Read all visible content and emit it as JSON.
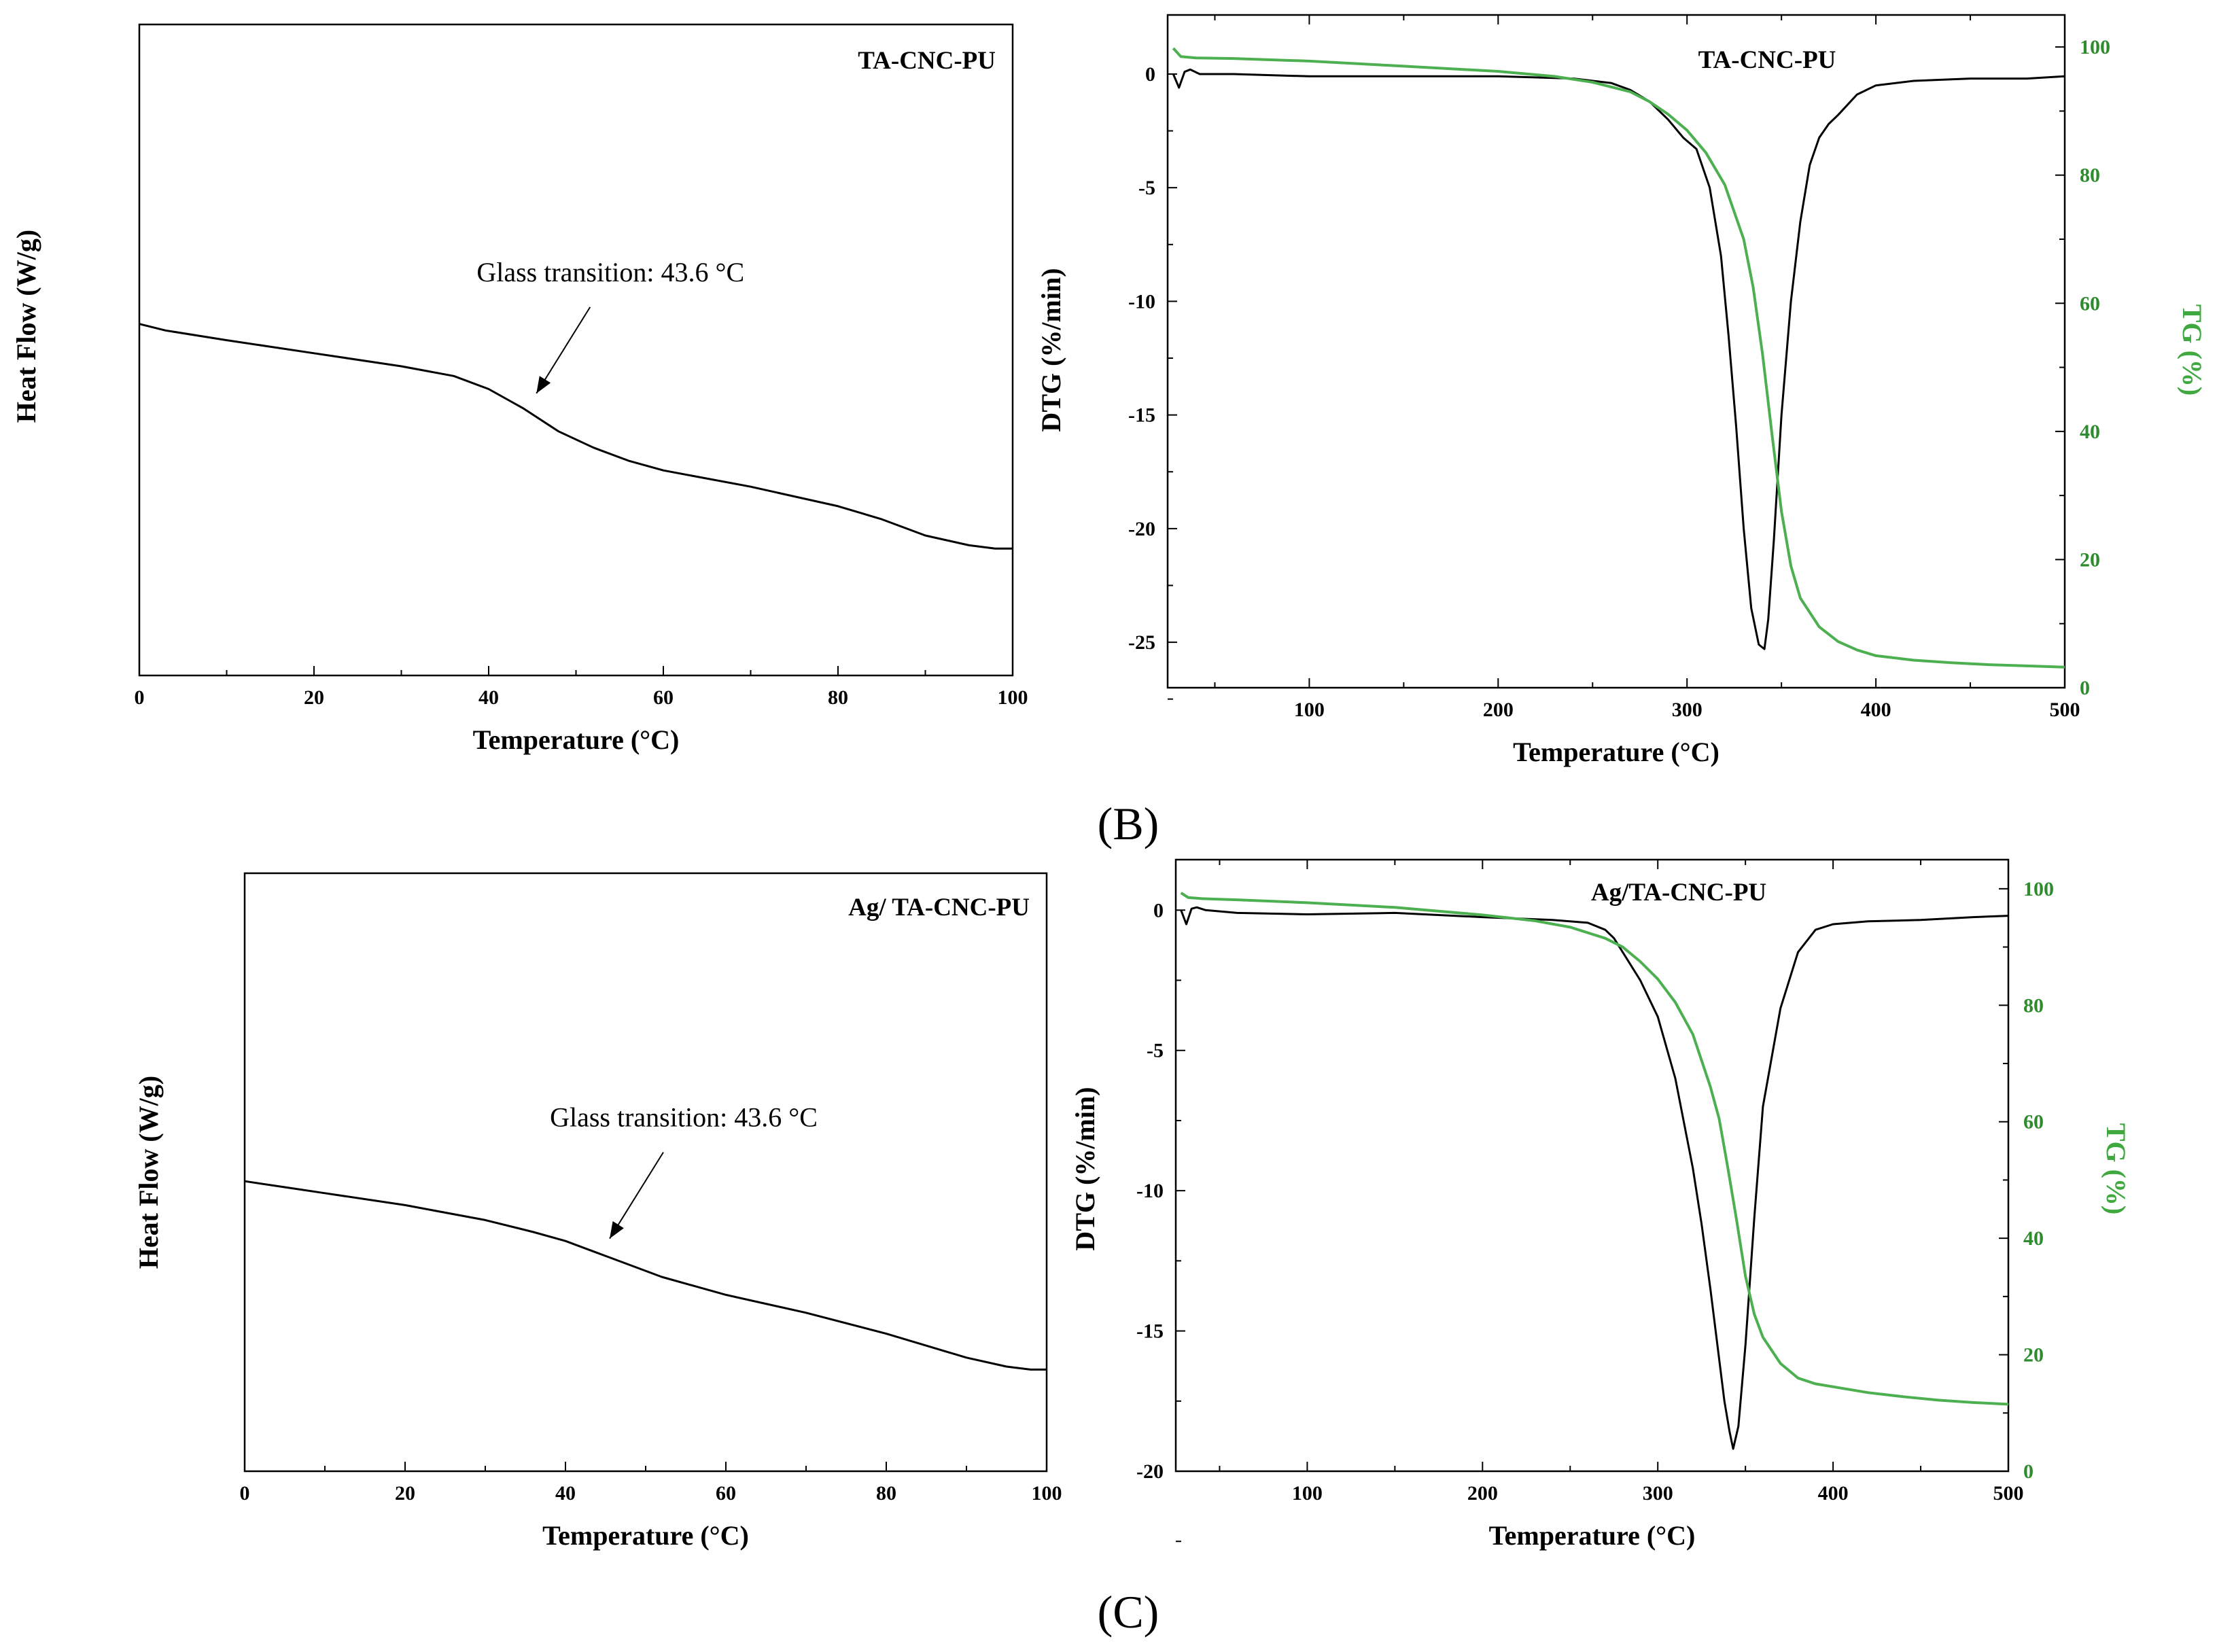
{
  "panel_labels": {
    "B": "(B)",
    "C": "(C)"
  },
  "colors": {
    "axis": "#000000",
    "dtg": "#000000",
    "tg": "#4caf50",
    "tg_axis": "#2e8b2e"
  },
  "chart_data": [
    {
      "id": "dsc_ta",
      "type": "line",
      "title": "TA-CNC-PU",
      "xlabel": "Temperature (°C)",
      "ylabel": "Heat Flow (W/g)",
      "xlim": [
        0,
        100
      ],
      "ylim": [
        0,
        1
      ],
      "x_ticks": [
        0,
        20,
        40,
        60,
        80,
        100
      ],
      "annotation": {
        "text": "Glass transition: 43.6 °C",
        "x": 45,
        "y": 0.425
      },
      "series": [
        {
          "name": "Heat Flow",
          "x": [
            0,
            3,
            10,
            20,
            30,
            36,
            40,
            44,
            48,
            52,
            56,
            60,
            70,
            80,
            85,
            90,
            95,
            98,
            100
          ],
          "y": [
            0.54,
            0.53,
            0.515,
            0.495,
            0.475,
            0.46,
            0.44,
            0.41,
            0.375,
            0.35,
            0.33,
            0.315,
            0.29,
            0.26,
            0.24,
            0.215,
            0.2,
            0.195,
            0.195
          ]
        }
      ]
    },
    {
      "id": "tga_ta",
      "type": "line",
      "title": "TA-CNC-PU",
      "xlabel": "Temperature (°C)",
      "ylabel": "DTG (%/min)",
      "y2label": "TG (%)",
      "xlim": [
        25,
        500
      ],
      "ylim": [
        -27,
        2.6
      ],
      "y2lim": [
        0,
        105
      ],
      "x_ticks": [
        100,
        200,
        300,
        400,
        500
      ],
      "y_ticks": [
        0,
        -5,
        -10,
        -15,
        -20,
        -25
      ],
      "y2_ticks": [
        0,
        20,
        40,
        60,
        80,
        100
      ],
      "series": [
        {
          "name": "DTG",
          "axis": "left",
          "x": [
            28,
            31,
            34,
            37,
            42,
            60,
            100,
            150,
            200,
            240,
            260,
            270,
            280,
            290,
            298,
            305,
            312,
            318,
            322,
            326,
            330,
            334,
            338,
            341,
            343,
            346,
            350,
            355,
            360,
            365,
            370,
            375,
            380,
            390,
            400,
            420,
            450,
            480,
            500
          ],
          "y": [
            0,
            -0.6,
            0.1,
            0.2,
            0,
            0,
            -0.1,
            -0.1,
            -0.1,
            -0.2,
            -0.4,
            -0.7,
            -1.2,
            -2.0,
            -2.8,
            -3.3,
            -5.0,
            -8.0,
            -11.5,
            -15.5,
            -20.0,
            -23.5,
            -25.1,
            -25.3,
            -24.0,
            -20.5,
            -15.0,
            -10.0,
            -6.5,
            -4.0,
            -2.8,
            -2.2,
            -1.8,
            -0.9,
            -0.5,
            -0.3,
            -0.2,
            -0.2,
            -0.1
          ]
        },
        {
          "name": "TG",
          "axis": "right",
          "x": [
            28,
            32,
            40,
            60,
            100,
            150,
            200,
            230,
            250,
            270,
            280,
            290,
            300,
            310,
            320,
            330,
            335,
            340,
            345,
            350,
            355,
            360,
            370,
            380,
            390,
            400,
            420,
            440,
            460,
            480,
            500
          ],
          "y": [
            99.8,
            98.5,
            98.3,
            98.2,
            97.8,
            97.0,
            96.2,
            95.4,
            94.5,
            93.0,
            91.5,
            89.5,
            87.0,
            83.5,
            78.5,
            70.0,
            62.5,
            52.0,
            39.5,
            27.5,
            19.0,
            14.0,
            9.5,
            7.2,
            5.9,
            5.0,
            4.3,
            3.9,
            3.6,
            3.4,
            3.2
          ]
        }
      ]
    },
    {
      "id": "dsc_ag",
      "type": "line",
      "title": "Ag/ TA-CNC-PU",
      "xlabel": "Temperature (°C)",
      "ylabel": "Heat Flow (W/g)",
      "xlim": [
        0,
        100
      ],
      "ylim": [
        0,
        1
      ],
      "x_ticks": [
        0,
        20,
        40,
        60,
        80,
        100
      ],
      "annotation": {
        "text": "Glass transition: 43.6 °C",
        "x": 45,
        "y": 0.38
      },
      "series": [
        {
          "name": "Heat Flow",
          "x": [
            0,
            5,
            10,
            20,
            30,
            36,
            40,
            44,
            48,
            52,
            56,
            60,
            70,
            80,
            85,
            90,
            95,
            98,
            100
          ],
          "y": [
            0.485,
            0.475,
            0.465,
            0.445,
            0.42,
            0.4,
            0.385,
            0.365,
            0.345,
            0.325,
            0.31,
            0.295,
            0.265,
            0.23,
            0.21,
            0.19,
            0.175,
            0.17,
            0.17
          ]
        }
      ]
    },
    {
      "id": "tga_ag",
      "type": "line",
      "title": "Ag/TA-CNC-PU",
      "xlabel": "Temperature (°C)",
      "ylabel": "DTG (%/min)",
      "y2label": "TG (%)",
      "xlim": [
        25,
        500
      ],
      "ylim": [
        -20,
        1.8
      ],
      "y2lim": [
        0,
        105
      ],
      "x_ticks": [
        100,
        200,
        300,
        400,
        500
      ],
      "y_ticks": [
        0,
        -5,
        -10,
        -15,
        -20
      ],
      "y2_ticks": [
        0,
        20,
        40,
        60,
        80,
        100
      ],
      "series": [
        {
          "name": "DTG",
          "axis": "left",
          "x": [
            28,
            31,
            34,
            37,
            42,
            60,
            100,
            150,
            200,
            240,
            260,
            270,
            275,
            280,
            290,
            300,
            310,
            320,
            325,
            330,
            335,
            338,
            341,
            343,
            346,
            350,
            355,
            360,
            370,
            380,
            390,
            400,
            420,
            450,
            480,
            500
          ],
          "y": [
            0,
            -0.5,
            0.05,
            0.1,
            0,
            -0.1,
            -0.15,
            -0.1,
            -0.25,
            -0.35,
            -0.45,
            -0.7,
            -1.0,
            -1.5,
            -2.5,
            -3.8,
            -6.0,
            -9.2,
            -11.2,
            -13.5,
            -16.0,
            -17.5,
            -18.6,
            -19.2,
            -18.4,
            -15.5,
            -11.0,
            -7.0,
            -3.5,
            -1.5,
            -0.7,
            -0.5,
            -0.4,
            -0.35,
            -0.25,
            -0.2
          ]
        },
        {
          "name": "TG",
          "axis": "right",
          "x": [
            28,
            32,
            40,
            60,
            100,
            150,
            200,
            230,
            250,
            270,
            280,
            290,
            300,
            310,
            320,
            330,
            335,
            340,
            345,
            350,
            355,
            360,
            370,
            380,
            390,
            400,
            420,
            440,
            460,
            480,
            500
          ],
          "y": [
            99.3,
            98.5,
            98.3,
            98.1,
            97.6,
            96.8,
            95.5,
            94.5,
            93.4,
            91.5,
            90.0,
            87.5,
            84.5,
            80.5,
            75.0,
            66.0,
            60.5,
            52.0,
            43.0,
            33.5,
            27.0,
            23.0,
            18.5,
            16.0,
            15.0,
            14.5,
            13.5,
            12.8,
            12.2,
            11.8,
            11.5
          ]
        }
      ]
    }
  ]
}
